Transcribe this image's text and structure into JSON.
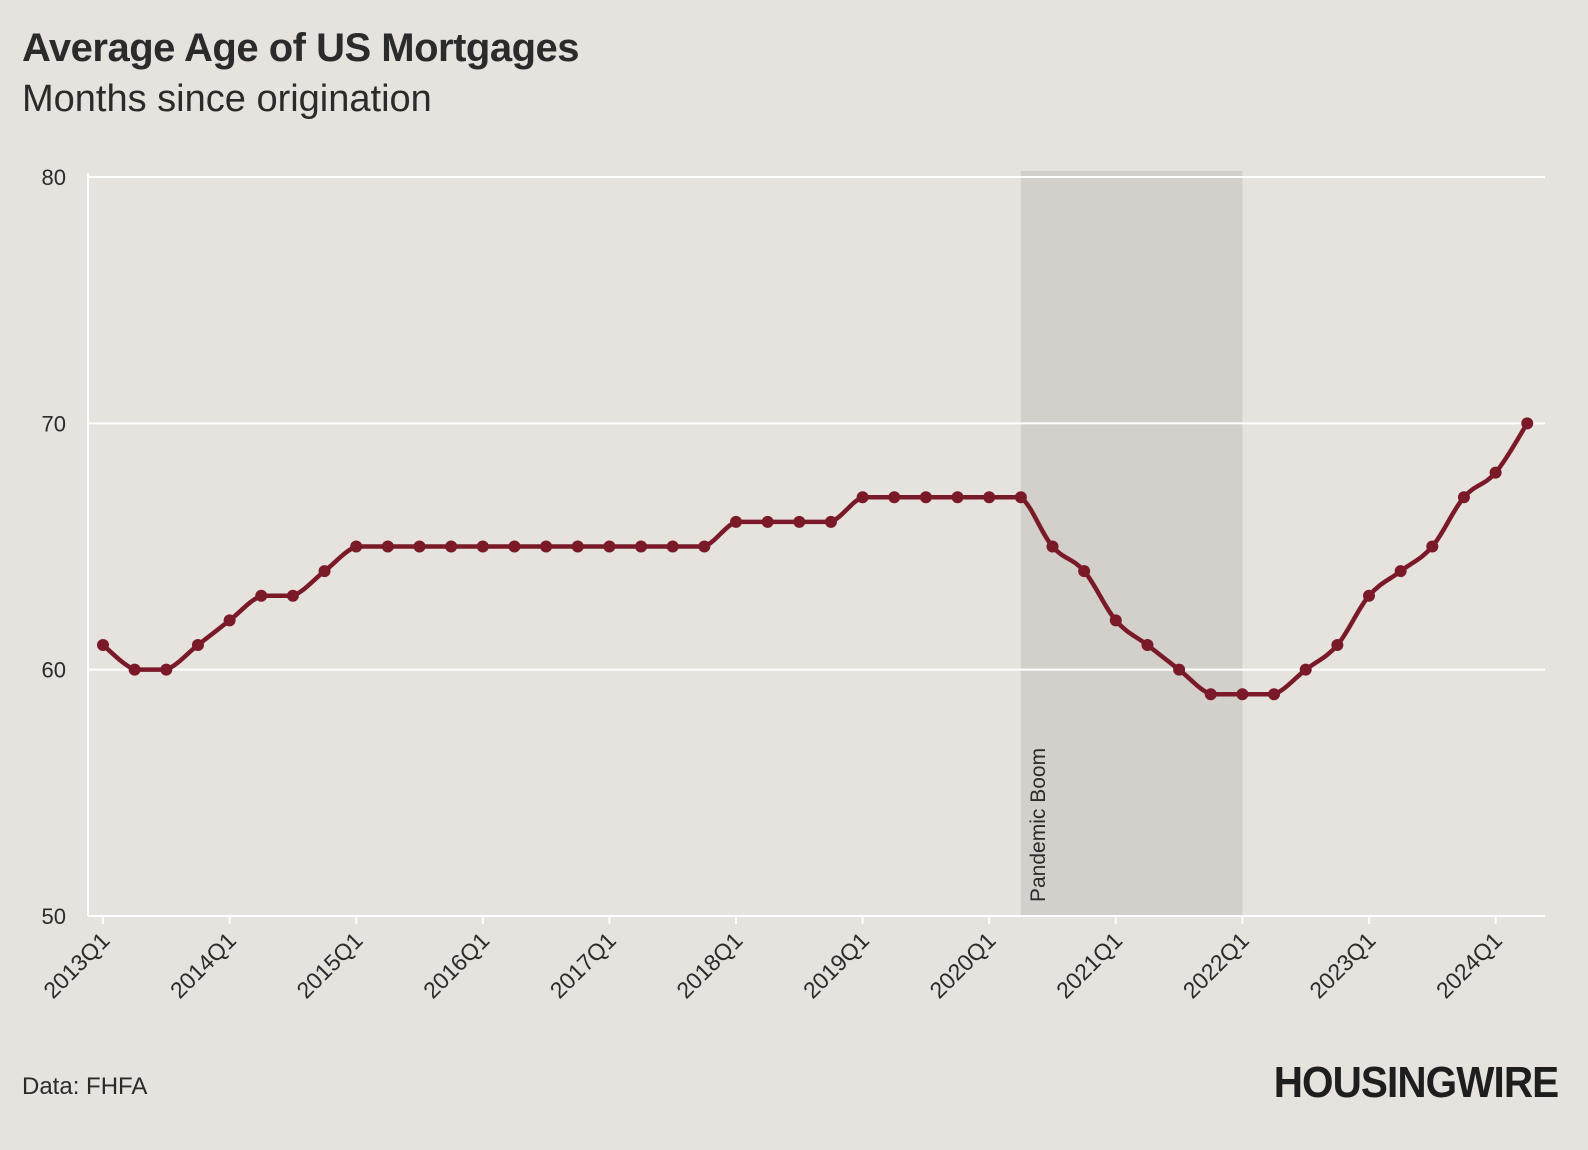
{
  "header": {
    "title": "Average Age of US Mortgages",
    "subtitle": "Months since origination"
  },
  "footer": {
    "source": "Data: FHFA",
    "logo": "HOUSINGWIRE"
  },
  "colors": {
    "background": "#e6e2dd",
    "line": "#7a1a28",
    "shade": "#d3cfca",
    "grid": "#ffffff",
    "text": "#2b2b2b"
  },
  "chart_data": {
    "type": "line",
    "title": "Average Age of US Mortgages",
    "subtitle": "Months since origination",
    "ylim": [
      50,
      80
    ],
    "yticks": [
      50,
      60,
      70,
      80
    ],
    "x_ticks": [
      "2013Q1",
      "2014Q1",
      "2015Q1",
      "2016Q1",
      "2017Q1",
      "2018Q1",
      "2019Q1",
      "2020Q1",
      "2021Q1",
      "2022Q1",
      "2023Q1",
      "2024Q1"
    ],
    "grid": "horizontal",
    "x": [
      "2013Q1",
      "2013Q2",
      "2013Q3",
      "2013Q4",
      "2014Q1",
      "2014Q2",
      "2014Q3",
      "2014Q4",
      "2015Q1",
      "2015Q2",
      "2015Q3",
      "2015Q4",
      "2016Q1",
      "2016Q2",
      "2016Q3",
      "2016Q4",
      "2017Q1",
      "2017Q2",
      "2017Q3",
      "2017Q4",
      "2018Q1",
      "2018Q2",
      "2018Q3",
      "2018Q4",
      "2019Q1",
      "2019Q2",
      "2019Q3",
      "2019Q4",
      "2020Q1",
      "2020Q2",
      "2020Q3",
      "2020Q4",
      "2021Q1",
      "2021Q2",
      "2021Q3",
      "2021Q4",
      "2022Q1",
      "2022Q2",
      "2022Q3",
      "2022Q4",
      "2023Q1",
      "2023Q2",
      "2023Q3",
      "2023Q4",
      "2024Q1",
      "2024Q2"
    ],
    "series": [
      {
        "values": [
          61,
          60,
          60,
          61,
          62,
          63,
          63,
          64,
          65,
          65,
          65,
          65,
          65,
          65,
          65,
          65,
          65,
          65,
          65,
          65,
          66,
          66,
          66,
          66,
          67,
          67,
          67,
          67,
          67,
          67,
          65,
          64,
          62,
          61,
          60,
          59,
          59,
          59,
          60,
          61,
          63,
          64,
          65,
          67,
          68,
          70
        ]
      }
    ],
    "annotations": [
      {
        "label": "Pandemic Boom",
        "type": "shaded-region",
        "x_start": "2020Q2",
        "x_end": "2022Q1"
      }
    ]
  }
}
